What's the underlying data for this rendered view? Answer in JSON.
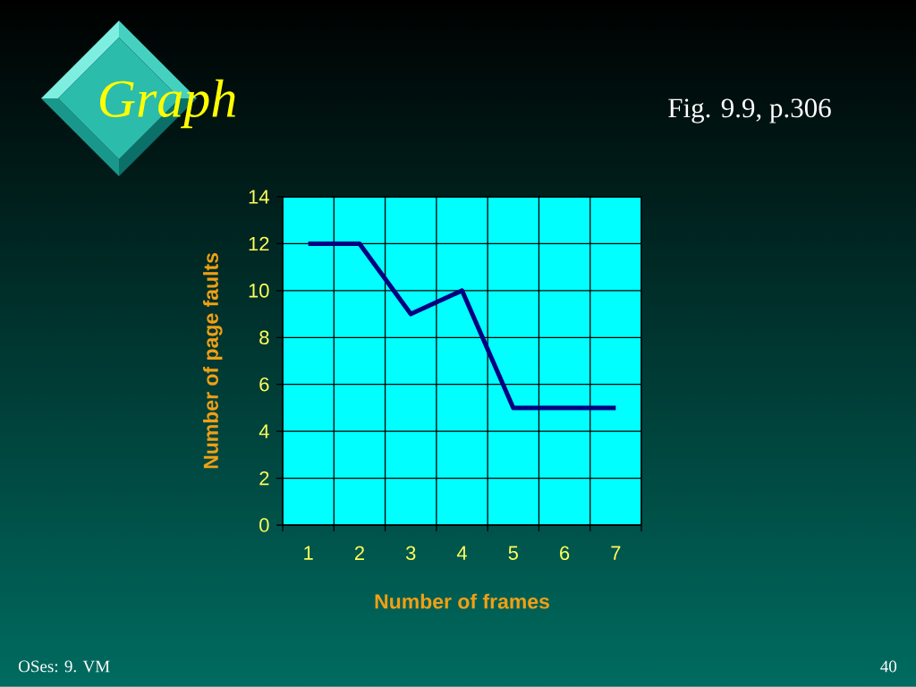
{
  "chart_data": {
    "type": "line",
    "title": "Graph",
    "subtitle": "Fig. 9.9, p.306",
    "xlabel": "Number of frames",
    "ylabel": "Number of page faults",
    "categories": [
      "1",
      "2",
      "3",
      "4",
      "5",
      "6",
      "7"
    ],
    "values": [
      12,
      12,
      9,
      10,
      5,
      5,
      5
    ],
    "color": "#000080",
    "ylim": [
      0,
      14
    ],
    "yticks": [
      0,
      2,
      4,
      6,
      8,
      10,
      12,
      14
    ],
    "grid": true,
    "annotations": [
      "OSes: 9. VM",
      "40"
    ]
  }
}
